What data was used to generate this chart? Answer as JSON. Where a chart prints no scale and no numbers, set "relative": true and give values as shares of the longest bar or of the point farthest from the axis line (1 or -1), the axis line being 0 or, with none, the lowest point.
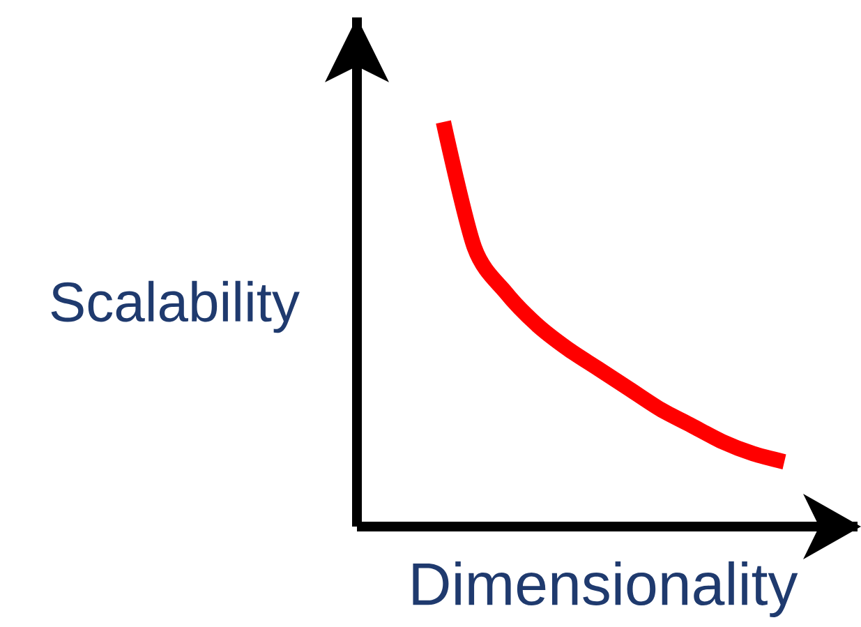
{
  "chart_data": {
    "type": "line",
    "relative": true,
    "xlabel": "Dimensionality",
    "ylabel": "Scalability",
    "categories": [
      null,
      null,
      null,
      null,
      null,
      null,
      null,
      null,
      null,
      null,
      null,
      null
    ],
    "values": [
      1,
      0.69,
      0.58,
      0.5,
      0.44,
      0.39,
      0.34,
      0.29,
      0.25,
      0.21,
      0.18,
      0.16
    ],
    "color": "#ff0000"
  }
}
